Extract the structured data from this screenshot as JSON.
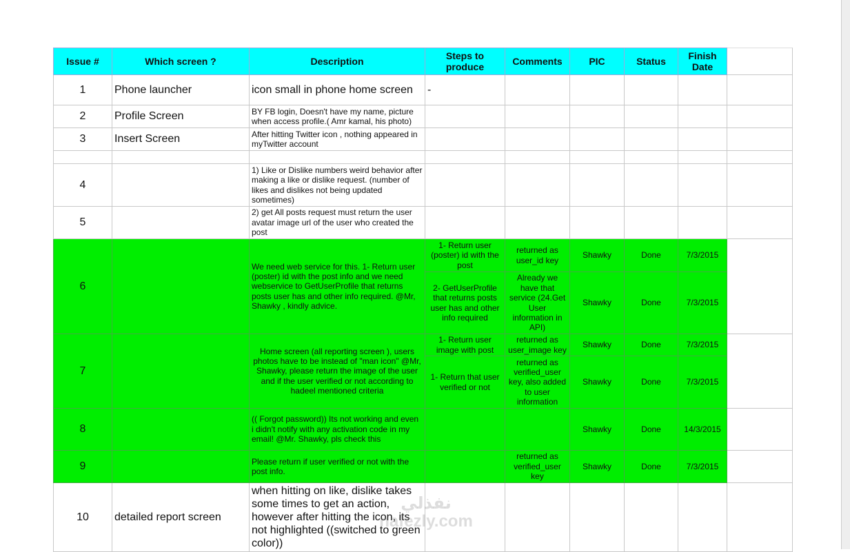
{
  "table": {
    "header": [
      "Issue #",
      "Which screen ?",
      "Description",
      "Steps to produce",
      "Comments",
      "PIC",
      "Status",
      "Finish Date"
    ],
    "header_color": "#00ffff",
    "rows": [
      {
        "issue": 1,
        "screen": "Phone launcher",
        "description": "icon small in phone home screen",
        "sub": [
          {
            "steps": "-"
          }
        ]
      },
      {
        "issue": 2,
        "screen": "Profile Screen",
        "description": "BY FB login, Doesn't have my name, picture when access profile.( Amr kamal, his photo)"
      },
      {
        "issue": 3,
        "screen": "Insert Screen",
        "description": "After hitting Twitter icon , nothing appeared in myTwitter account"
      },
      {
        "issue": 4,
        "description": "1) Like or Dislike numbers weird behavior after making a like or dislike request. (number of likes and dislikes not being updated sometimes)"
      },
      {
        "issue": 5,
        "description": "2) get All posts request must return the user avatar image url of the user who created the post"
      },
      {
        "issue": 6,
        "description": "We need web service for this. 1- Return user (poster) id with the post info and we need webservice to GetUserProfile that returns posts user has and other info required. @Mr, Shawky , kindly advice.",
        "color": "#00ee00",
        "sub": [
          {
            "steps": "1- Return user (poster) id with the post",
            "comments": "returned as user_id key",
            "pic": "Shawky",
            "status": "Done",
            "finish": "7/3/2015"
          },
          {
            "steps": "2-  GetUserProfile that returns posts user has and other info required",
            "comments": "Already we have that service (24.Get User information in API)",
            "pic": "Shawky",
            "status": "Done",
            "finish": "7/3/2015"
          }
        ]
      },
      {
        "issue": 7,
        "description": "Home screen (all reporting screen ), users photos have to be instead of \"man icon\" @Mr, Shawky, please return the image of the user and if the user verified or not according to hadeel mentioned criteria",
        "color": "#00ee00",
        "sub": [
          {
            "steps": "1- Return user image with post",
            "comments": "returned as user_image key",
            "pic": "Shawky",
            "status": "Done",
            "finish": "7/3/2015"
          },
          {
            "steps": "1- Return that user verified or not",
            "comments": "returned as verified_user key, also added to user information",
            "pic": "Shawky",
            "status": "Done",
            "finish": "7/3/2015"
          }
        ]
      },
      {
        "issue": 8,
        "description": "(( Forgot password)) Its not working and even i didn't notify with any activation code in my email! @Mr. Shawky, pls check this",
        "color": "#00ee00",
        "sub": [
          {
            "pic": "Shawky",
            "status": "Done",
            "finish": "14/3/2015"
          }
        ]
      },
      {
        "issue": 9,
        "description": "Please return if user verified or not with the post info.",
        "color": "#00ee00",
        "sub": [
          {
            "comments": "returned as verified_user key",
            "pic": "Shawky",
            "status": "Done",
            "finish": "7/3/2015"
          }
        ]
      },
      {
        "issue": 10,
        "screen": "detailed report screen",
        "description": "when hitting on like, dislike takes some times to get an action, however after hitting the icon, its not highlighted ((switched to green color))"
      }
    ]
  },
  "watermark": "نفذلي nafezly.com"
}
